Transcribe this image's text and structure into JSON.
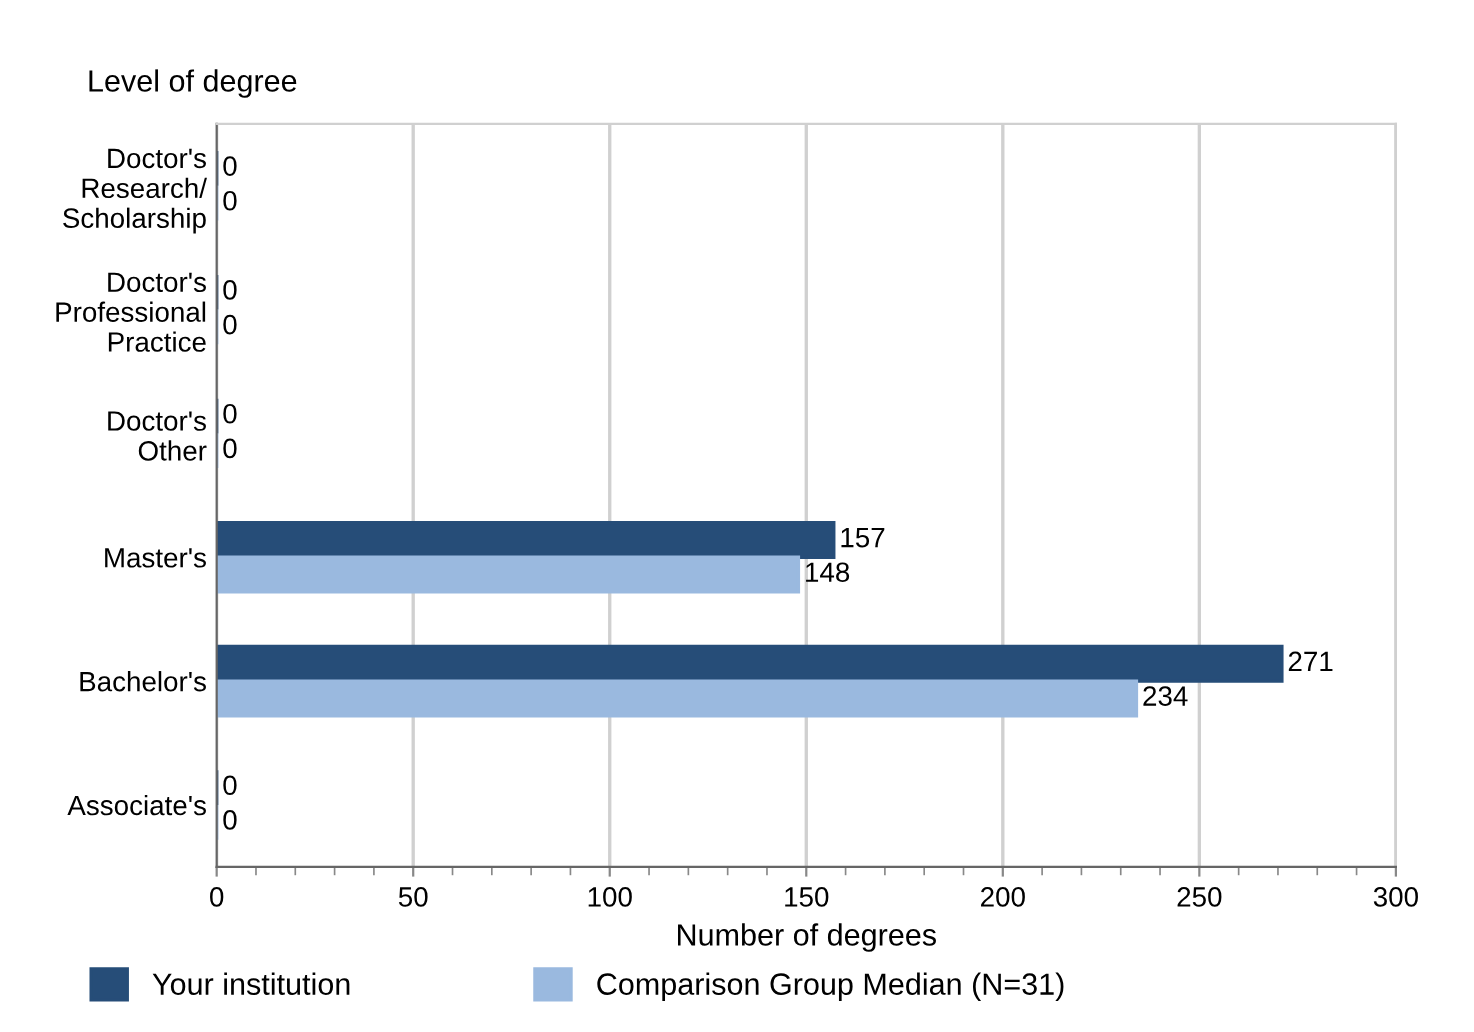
{
  "chart_data": {
    "type": "bar",
    "orientation": "horizontal",
    "categories": [
      "Doctor's\nResearch/\nScholarship",
      "Doctor's\nProfessional\nPractice",
      "Doctor's\nOther",
      "Master's",
      "Bachelor's",
      "Associate's"
    ],
    "series": [
      {
        "name": "Your institution",
        "color": "#264d78",
        "values": [
          0,
          0,
          0,
          157,
          271,
          0
        ]
      },
      {
        "name": "Comparison Group Median (N=31)",
        "color": "#9ab9df",
        "values": [
          0,
          0,
          0,
          148,
          234,
          0
        ]
      }
    ],
    "ylabel": "Level of degree",
    "xlabel": "Number of degrees",
    "xlim": [
      0,
      300
    ],
    "xticks": [
      0,
      50,
      100,
      150,
      200,
      250,
      300
    ],
    "grid": "x",
    "legend": "bottom",
    "data_labels": true
  }
}
